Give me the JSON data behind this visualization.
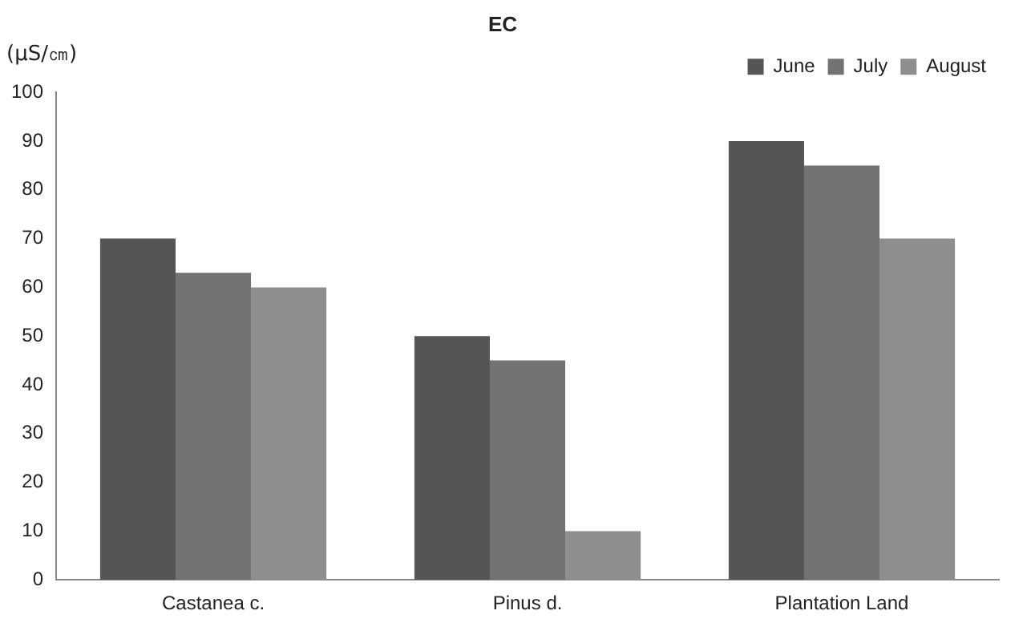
{
  "chart_data": {
    "type": "bar",
    "title": "EC",
    "ylabel": "(μS/㎝)",
    "categories": [
      "Castanea c.",
      "Pinus d.",
      "Plantation Land"
    ],
    "series": [
      {
        "name": "June",
        "color": "#555555",
        "values": [
          70,
          50,
          90
        ]
      },
      {
        "name": "July",
        "color": "#737373",
        "values": [
          63,
          45,
          85
        ]
      },
      {
        "name": "August",
        "color": "#8e8e8e",
        "values": [
          60,
          10,
          70
        ]
      }
    ],
    "ylim": [
      0,
      100
    ],
    "yticks": [
      0,
      10,
      20,
      30,
      40,
      50,
      60,
      70,
      80,
      90,
      100
    ],
    "grid": false,
    "legend": "top right"
  }
}
